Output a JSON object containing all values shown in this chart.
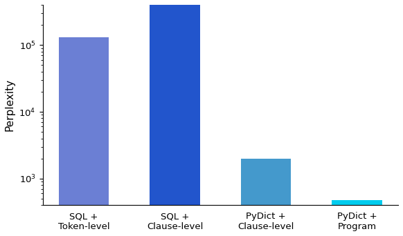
{
  "categories": [
    "SQL +\nToken-level",
    "SQL +\nClause-level",
    "PyDict +\nClause-level",
    "PyDict +\nProgram"
  ],
  "values": [
    130000,
    550000,
    2000,
    480
  ],
  "bar_colors": [
    "#6b7fd4",
    "#2255cc",
    "#4499cc",
    "#00ccee"
  ],
  "ylabel": "Perplexity",
  "ylim_min": 400,
  "ylim_max": 400000,
  "bar_width": 0.55,
  "ylabel_fontsize": 11,
  "tick_fontsize": 9.5
}
